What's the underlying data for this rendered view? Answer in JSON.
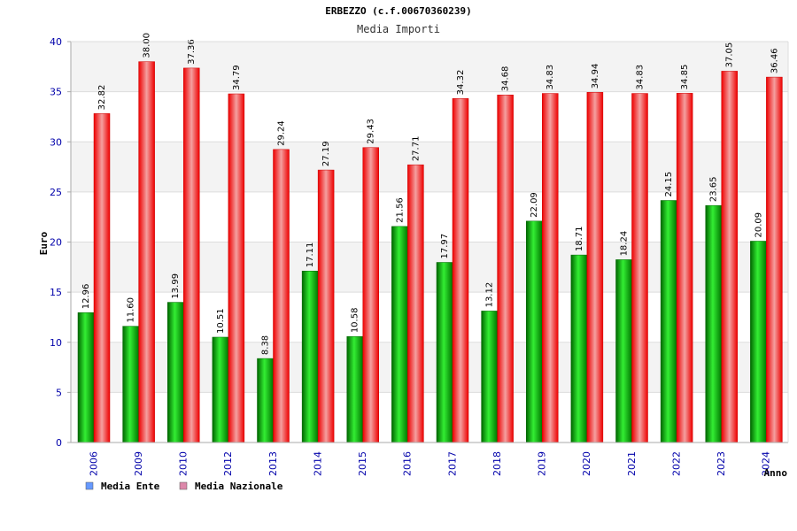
{
  "chart_data": {
    "type": "bar",
    "title": "ERBEZZO (c.f.00670360239)",
    "subtitle": "Media Importi",
    "ylabel": "Euro",
    "xlabel": "Anno",
    "ylim": [
      0,
      40
    ],
    "yticks": [
      0,
      5,
      10,
      15,
      20,
      25,
      30,
      35,
      40
    ],
    "grid": true,
    "legend_position": "bottom-left",
    "categories": [
      "2006",
      "2009",
      "2010",
      "2012",
      "2013",
      "2014",
      "2015",
      "2016",
      "2017",
      "2018",
      "2019",
      "2020",
      "2021",
      "2022",
      "2023",
      "2024"
    ],
    "series": [
      {
        "name": "Media Ente",
        "color": "#00cc00",
        "legend_color": "#6699ff",
        "values": [
          12.96,
          11.6,
          13.99,
          10.51,
          8.38,
          17.11,
          10.58,
          21.56,
          17.97,
          13.12,
          22.09,
          18.71,
          18.24,
          24.15,
          23.65,
          20.09
        ],
        "labels": [
          "12.96",
          "11.60",
          "13.99",
          "10.51",
          "8.38",
          "17.11",
          "10.58",
          "21.56",
          "17.97",
          "13.12",
          "22.09",
          "18.71",
          "18.24",
          "24.15",
          "23.65",
          "20.09"
        ]
      },
      {
        "name": "Media Nazionale",
        "color": "#ee1111",
        "legend_color": "#dd88aa",
        "values": [
          32.82,
          38.0,
          37.36,
          34.79,
          29.24,
          27.19,
          29.43,
          27.71,
          34.32,
          34.68,
          34.83,
          34.94,
          34.83,
          34.85,
          37.05,
          36.46
        ],
        "labels": [
          "32.82",
          "38.00",
          "37.36",
          "34.79",
          "29.24",
          "27.19",
          "29.43",
          "27.71",
          "34.32",
          "34.68",
          "34.83",
          "34.94",
          "34.83",
          "34.85",
          "37.05",
          "36.46"
        ]
      }
    ]
  }
}
